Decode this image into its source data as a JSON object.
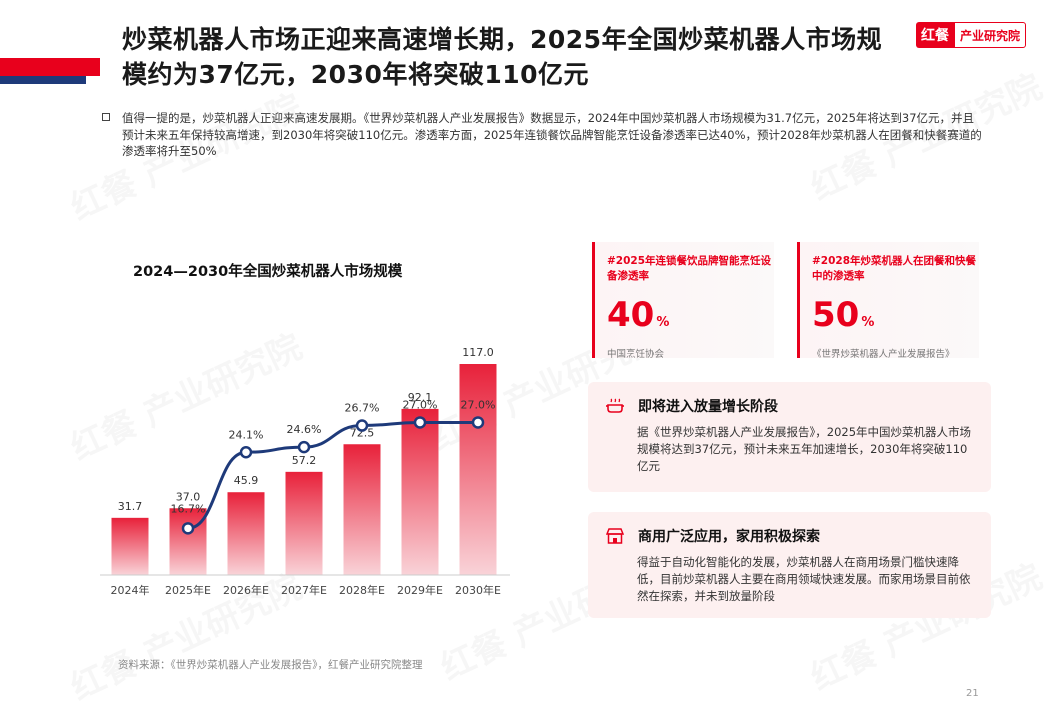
{
  "header": {
    "title": "炒菜机器人市场正迎来高速增长期，2025年全国炒菜机器人市场规模约为37亿元，2030年将突破110亿元",
    "logo_mark": "红餐",
    "logo_text": "产业研究院"
  },
  "summary": "值得一提的是，炒菜机器人正迎来高速发展期。《世界炒菜机器人产业发展报告》数据显示，2024年中国炒菜机器人市场规模为31.7亿元，2025年将达到37亿元，并且预计未来五年保持较高增速，到2030年将突破110亿元。渗透率方面，2025年连锁餐饮品牌智能烹饪设备渗透率已达40%，预计2028年炒菜机器人在团餐和快餐赛道的渗透率将升至50%",
  "chart_data": {
    "type": "bar",
    "title": "2024—2030年全国炒菜机器人市场规模",
    "categories": [
      "2024年",
      "2025年E",
      "2026年E",
      "2027年E",
      "2028年E",
      "2029年E",
      "2030年E"
    ],
    "series": [
      {
        "values": [
          31.7,
          37.0,
          45.9,
          57.2,
          72.5,
          92.1,
          117.0
        ],
        "labels": [
          "31.7",
          "37.0",
          "45.9",
          "57.2",
          "72.5",
          "92.1",
          "117.0"
        ],
        "type": "bar"
      },
      {
        "values": [
          null,
          16.7,
          24.1,
          24.6,
          26.7,
          27.0,
          27.0
        ],
        "labels": [
          "",
          "16.7%",
          "24.1%",
          "24.6%",
          "26.7%",
          "27.0%",
          "27.0%"
        ],
        "type": "line"
      }
    ],
    "colors": {
      "bar": "#e8213a",
      "line": "#1e3a7a"
    }
  },
  "stats": [
    {
      "label": "#2025年连锁餐饮品牌智能烹饪设备渗透率",
      "value": "40",
      "unit": "%",
      "source": "中国烹饪协会"
    },
    {
      "label": "#2028年炒菜机器人在团餐和快餐中的渗透率",
      "value": "50",
      "unit": "%",
      "source": "《世界炒菜机器人产业发展报告》"
    }
  ],
  "info": [
    {
      "title": "即将进入放量增长阶段",
      "icon": "cooking-pot-icon",
      "body": "据《世界炒菜机器人产业发展报告》，2025年中国炒菜机器人市场规模将达到37亿元，预计未来五年加速增长，2030年将突破110亿元"
    },
    {
      "title": "商用广泛应用，家用积极探索",
      "icon": "storefront-icon",
      "body": "得益于自动化智能化的发展，炒菜机器人在商用场景门槛快速降低，目前炒菜机器人主要在商用领域快速发展。而家用场景目前依然在探索，并未到放量阶段"
    }
  ],
  "source": "资料来源：《世界炒菜机器人产业发展报告》，红餐产业研究院整理",
  "page_number": "21"
}
